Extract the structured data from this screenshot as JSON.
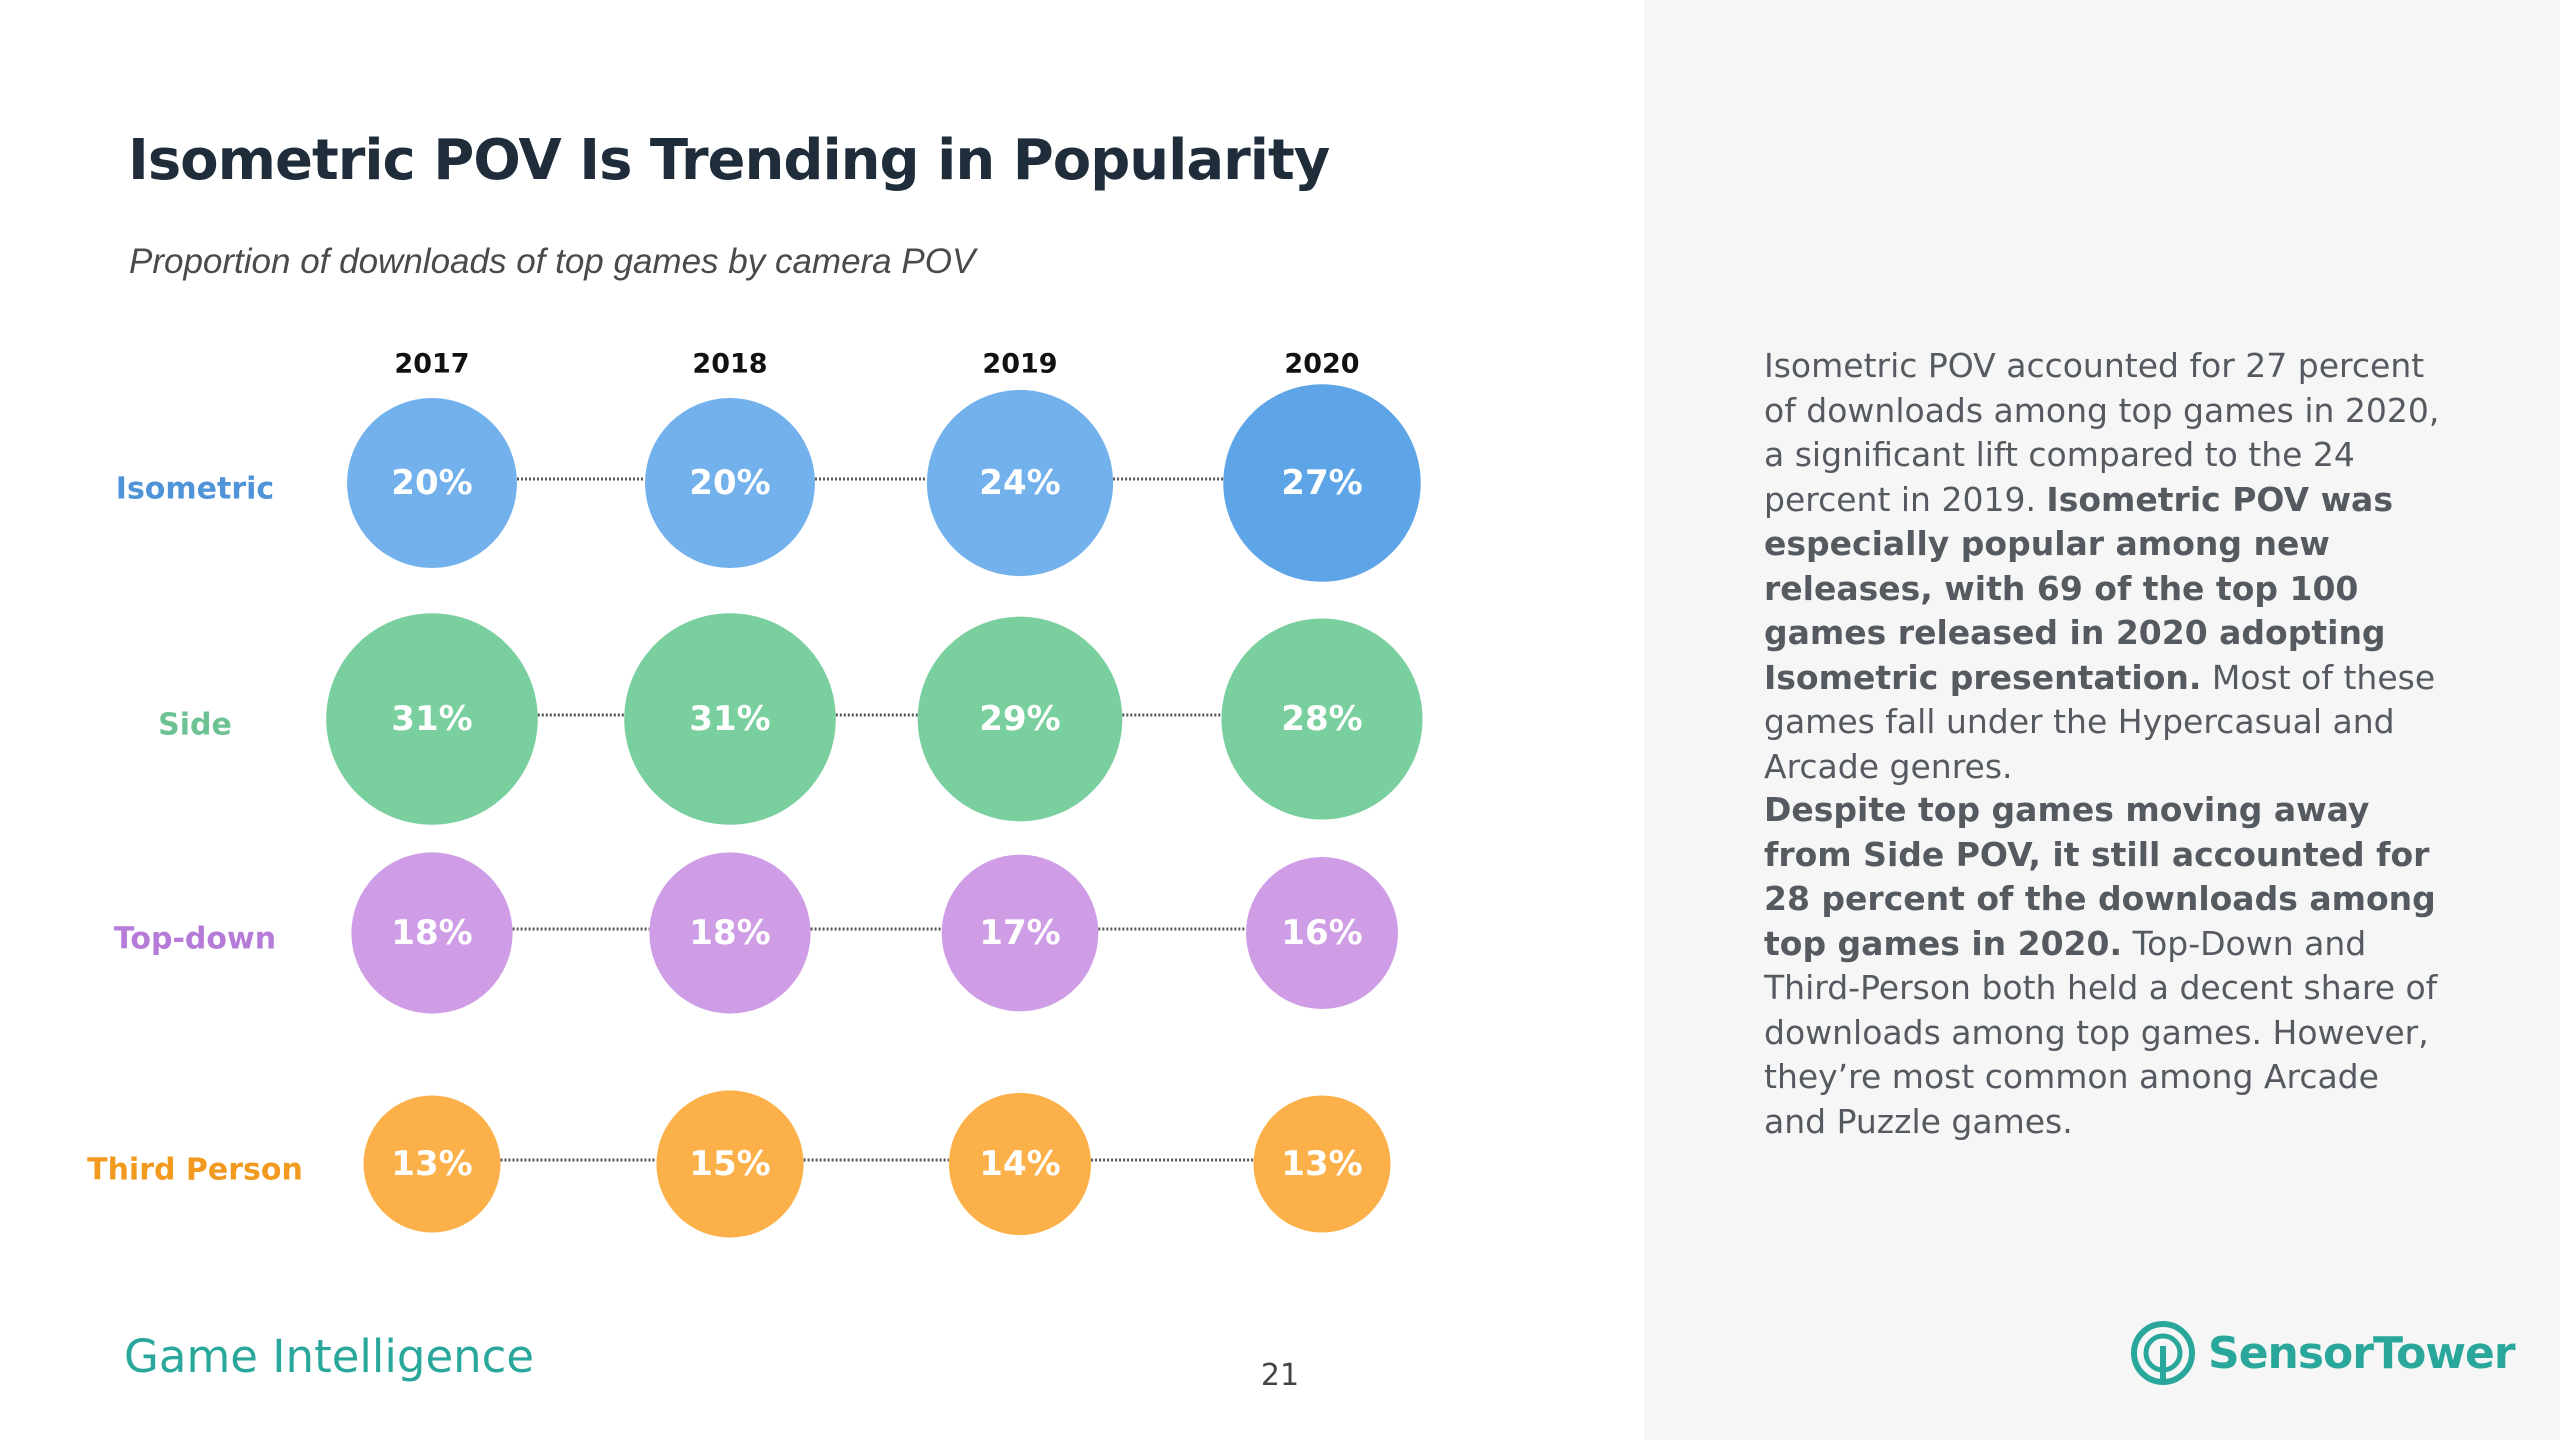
{
  "slide": {
    "title": "Isometric POV Is Trending in Popularity",
    "subtitle": "Proportion of downloads of top games by camera POV",
    "footer_brand": "Game Intelligence",
    "page_number": "21",
    "logo_text": "SensorTower",
    "logo_icon": "sensor-tower-logo-icon"
  },
  "description": {
    "p1_pre": "Isometric POV accounted for 27 percent of downloads among top games in 2020, a significant lift compared to the 24 percent in 2019. ",
    "p1_bold": "Isometric POV was especially popular among new releases, with 69 of the top 100 games released in 2020 adopting Isometric presentation.",
    "p1_post": " Most of these games fall under the Hypercasual and Arcade genres.",
    "p2_bold": "Despite top games moving away from Side POV, it still accounted for 28 percent of the downloads among top games in 2020.",
    "p2_post": " Top-Down and Third-Person both held a decent share of downloads among top games. However, they’re most common among Arcade and Puzzle games."
  },
  "chart_data": {
    "type": "scatter",
    "title": "Isometric POV Is Trending in Popularity",
    "subtitle": "Proportion of downloads of top games by camera POV",
    "categories": [
      "2017",
      "2018",
      "2019",
      "2020"
    ],
    "unit": "%",
    "series": [
      {
        "name": "Isometric",
        "color": "#72b1ec",
        "values": [
          20,
          20,
          24,
          27
        ]
      },
      {
        "name": "Side",
        "color": "#7acf9f",
        "values": [
          31,
          31,
          29,
          28
        ]
      },
      {
        "name": "Top-down",
        "color": "#cf9ce6",
        "values": [
          18,
          18,
          17,
          16
        ]
      },
      {
        "name": "Third Person",
        "color": "#fbb04a",
        "values": [
          13,
          15,
          14,
          13
        ]
      }
    ],
    "label_colors": [
      "#4f93d8",
      "#6cc293",
      "#b67bd8",
      "#f29a1f"
    ],
    "value_label_color": "#ffffff",
    "connector_color": "#555555",
    "highlight_color": "#5ea5e8",
    "grid": false,
    "legend": "none"
  }
}
